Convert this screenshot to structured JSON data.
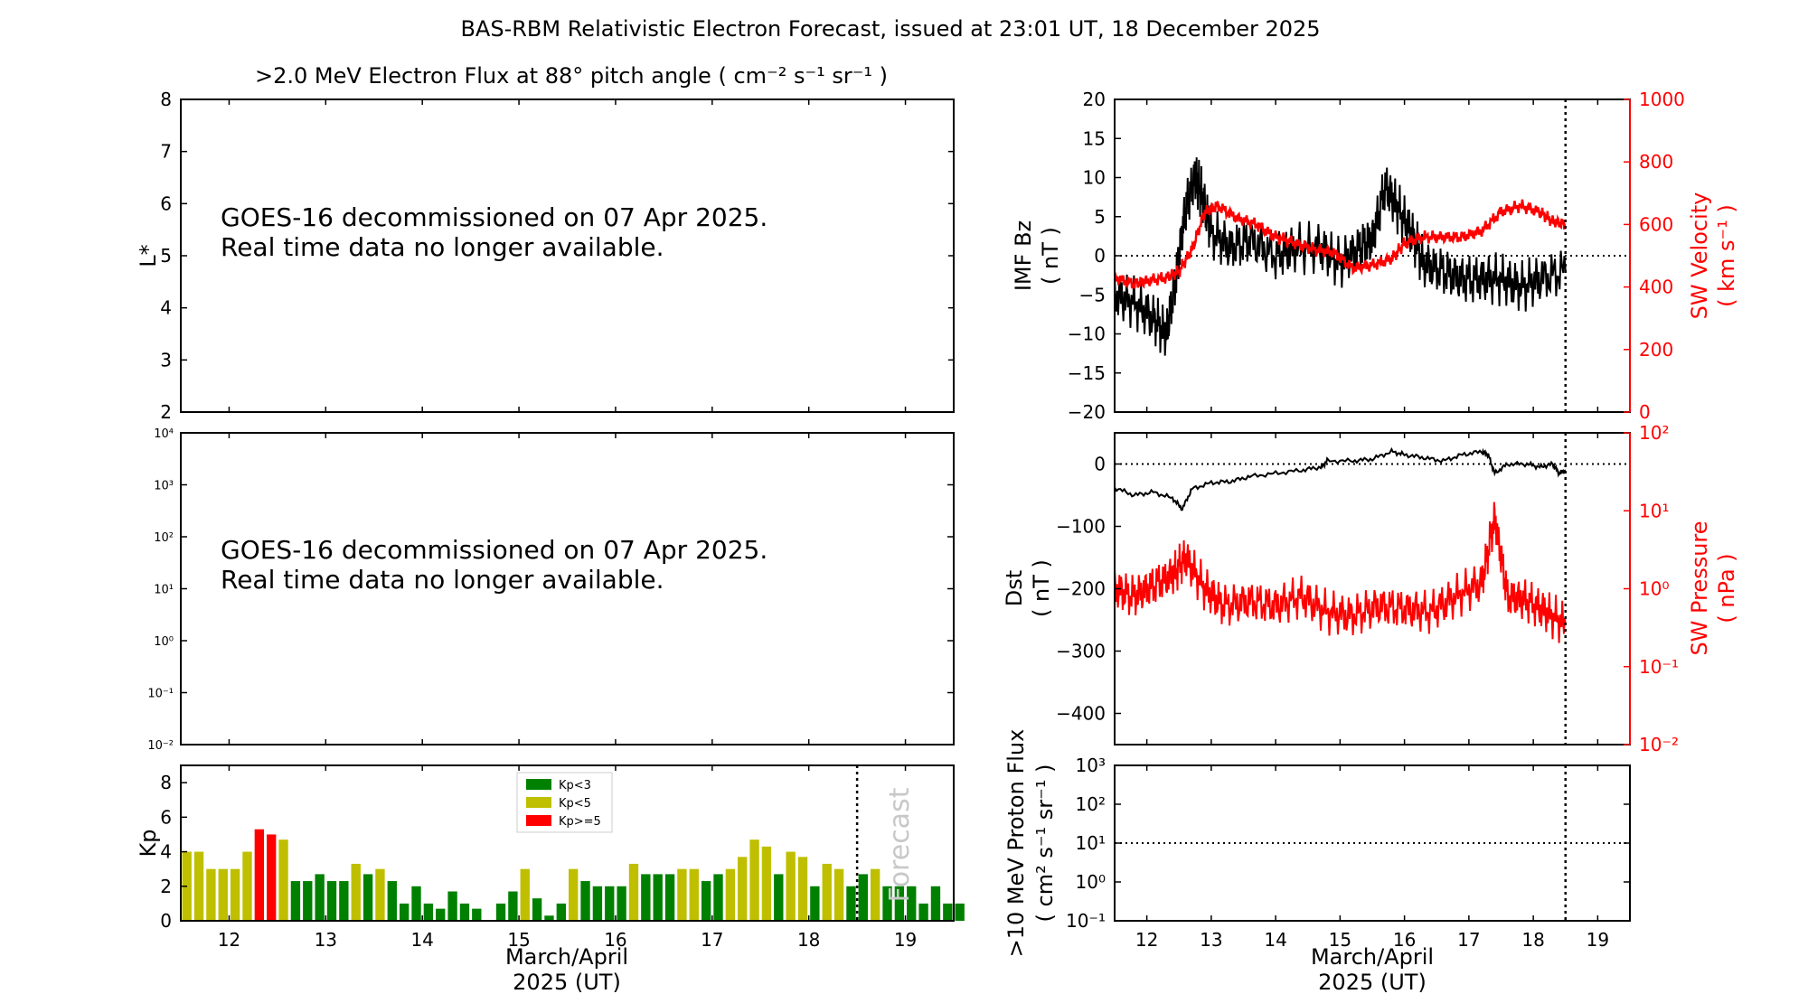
{
  "title": "BAS-RBM Relativistic Electron Forecast, issued at 23:01 UT, 18 December 2025",
  "colors": {
    "kp_low": "#008000",
    "kp_mid": "#bfbf00",
    "kp_high": "#ff0000",
    "solar_wind": "#ff0000",
    "imf": "#000000"
  },
  "flux_panel": {
    "title": ">2.0 MeV Electron Flux at 88° pitch angle ( cm⁻² s⁻¹ sr⁻¹ )",
    "ylabel": "L*",
    "yticks": [
      "2",
      "3",
      "4",
      "5",
      "6",
      "7",
      "8"
    ],
    "message_line1": "GOES-16 decommissioned on 07 Apr 2025.",
    "message_line2": "Real time data no longer available."
  },
  "spectrum_panel": {
    "yticks": [
      "10⁻²",
      "10⁻¹",
      "10⁰",
      "10¹",
      "10²",
      "10³",
      "10⁴"
    ],
    "message_line1": "GOES-16 decommissioned on 07 Apr 2025.",
    "message_line2": "Real time data no longer available."
  },
  "kp_panel": {
    "ylabel": "Kp",
    "yticks": [
      "0",
      "2",
      "4",
      "6",
      "8"
    ],
    "xticks": [
      "12",
      "13",
      "14",
      "15",
      "16",
      "17",
      "18",
      "19"
    ],
    "xlabel_line1": "March/April",
    "xlabel_line2": "2025 (UT)",
    "forecast_label": "Forecast",
    "legend": [
      "Kp<3",
      "Kp<5",
      "Kp>=5"
    ]
  },
  "imf_panel": {
    "ylabel_line1": "IMF Bz",
    "ylabel_line2": "( nT )",
    "right_label_line1": "SW Velocity",
    "right_label_line2": "( km s⁻¹ )",
    "yticks_left": [
      "−20",
      "−15",
      "−10",
      "−5",
      "0",
      "5",
      "10",
      "15",
      "20"
    ],
    "yticks_right": [
      "0",
      "200",
      "400",
      "600",
      "800",
      "1000"
    ]
  },
  "dst_panel": {
    "ylabel_line1": "Dst",
    "ylabel_line2": "( nT )",
    "right_label_line1": "SW Pressure",
    "right_label_line2": "( nPa )",
    "yticks_left": [
      "−400",
      "−300",
      "−200",
      "−100",
      "0"
    ],
    "yticks_right": [
      "10⁻²",
      "10⁻¹",
      "10⁰",
      "10¹",
      "10²"
    ]
  },
  "proton_panel": {
    "ylabel_line1": ">10 MeV Proton Flux",
    "ylabel_line2": "( cm² s⁻¹ sr⁻¹ )",
    "yticks": [
      "10⁻¹",
      "10⁰",
      "10¹",
      "10²",
      "10³"
    ],
    "xticks": [
      "12",
      "13",
      "14",
      "15",
      "16",
      "17",
      "18",
      "19"
    ],
    "xlabel_line1": "March/April",
    "xlabel_line2": "2025 (UT)"
  },
  "chart_data": [
    {
      "type": "bar",
      "name": "Kp",
      "x_start_day": 11.5,
      "bin_days": 0.125,
      "forecast_start_day": 18.5,
      "xlim": [
        11.5,
        19.5
      ],
      "ylim": [
        0,
        9
      ],
      "values": [
        4.0,
        4.0,
        3.0,
        3.0,
        3.0,
        4.0,
        5.3,
        5.0,
        4.7,
        2.3,
        2.3,
        2.7,
        2.3,
        2.3,
        3.3,
        2.7,
        3.0,
        2.3,
        1.0,
        2.0,
        1.0,
        0.7,
        1.7,
        1.0,
        0.7,
        0.0,
        1.0,
        1.7,
        3.0,
        1.3,
        0.3,
        1.0,
        3.0,
        2.3,
        2.0,
        2.0,
        2.0,
        3.3,
        2.7,
        2.7,
        2.7,
        3.0,
        3.0,
        2.3,
        2.7,
        3.0,
        3.7,
        4.7,
        4.3,
        2.7,
        4.0,
        3.7,
        2.0,
        3.3,
        3.0,
        2.0,
        2.7,
        3.0,
        2.0,
        2.0,
        2.0,
        1.0,
        2.0,
        1.0,
        1.0
      ]
    },
    {
      "type": "line",
      "name": "IMF Bz",
      "xlim": [
        11.5,
        19.5
      ],
      "ylim": [
        -20,
        20
      ],
      "right_axis_ylim": [
        0,
        1000
      ],
      "data_end_day": 18.5,
      "bz_x": [
        11.5,
        11.8,
        12.1,
        12.3,
        12.45,
        12.6,
        12.75,
        12.85,
        13.0,
        13.3,
        13.6,
        14.0,
        14.3,
        14.7,
        15.0,
        15.3,
        15.5,
        15.7,
        15.9,
        16.1,
        16.3,
        16.6,
        16.9,
        17.2,
        17.5,
        17.8,
        18.1,
        18.5
      ],
      "bz_y": [
        -5,
        -6,
        -8,
        -10,
        -3,
        6,
        10,
        8,
        3,
        1,
        2,
        0,
        1,
        1,
        -1,
        1,
        2,
        9,
        6,
        3,
        -1,
        -2,
        -3,
        -3,
        -3,
        -4,
        -3,
        -2
      ],
      "velocity_x": [
        11.5,
        11.8,
        12.0,
        12.3,
        12.5,
        12.7,
        12.9,
        13.1,
        13.4,
        13.7,
        14.0,
        14.3,
        14.6,
        14.9,
        15.2,
        15.5,
        15.8,
        16.0,
        16.3,
        16.6,
        16.9,
        17.2,
        17.5,
        17.8,
        18.1,
        18.3,
        18.5
      ],
      "velocity_y": [
        430,
        410,
        420,
        430,
        450,
        520,
        640,
        660,
        620,
        600,
        560,
        540,
        520,
        510,
        460,
        470,
        490,
        540,
        560,
        560,
        560,
        580,
        640,
        660,
        640,
        610,
        600
      ]
    },
    {
      "type": "line",
      "name": "Dst",
      "xlim": [
        11.5,
        19.5
      ],
      "ylim": [
        -450,
        50
      ],
      "right_axis_log_range": [
        -2,
        2
      ],
      "data_end_day": 18.5,
      "dst_x": [
        11.5,
        11.8,
        12.1,
        12.4,
        12.55,
        12.7,
        13.0,
        13.3,
        13.6,
        14.0,
        14.4,
        14.7,
        14.8,
        15.2,
        15.5,
        15.8,
        16.0,
        16.3,
        16.6,
        16.9,
        17.2,
        17.3,
        17.4,
        17.6,
        17.9,
        18.1,
        18.3,
        18.4,
        18.5
      ],
      "dst_y": [
        -38,
        -50,
        -45,
        -55,
        -72,
        -40,
        -30,
        -28,
        -20,
        -15,
        -10,
        -5,
        5,
        5,
        8,
        20,
        15,
        10,
        5,
        15,
        20,
        15,
        -15,
        0,
        0,
        -5,
        0,
        -15,
        -10
      ],
      "pressure_x": [
        11.5,
        11.8,
        12.1,
        12.4,
        12.6,
        12.9,
        13.2,
        13.6,
        14.0,
        14.4,
        14.8,
        15.2,
        15.6,
        16.0,
        16.4,
        16.8,
        17.2,
        17.4,
        17.6,
        17.9,
        18.2,
        18.5
      ],
      "pressure_y": [
        1.0,
        0.8,
        1.1,
        1.5,
        2.5,
        1.0,
        0.6,
        0.7,
        0.6,
        0.8,
        0.5,
        0.45,
        0.6,
        0.55,
        0.5,
        0.8,
        1.2,
        8.0,
        0.8,
        0.7,
        0.5,
        0.35
      ]
    },
    {
      "type": "line",
      "name": ">10 MeV Proton Flux",
      "xlim": [
        11.5,
        19.5
      ],
      "y_log_range": [
        -1,
        3
      ],
      "threshold": 10,
      "data_end_day": 18.5
    }
  ]
}
